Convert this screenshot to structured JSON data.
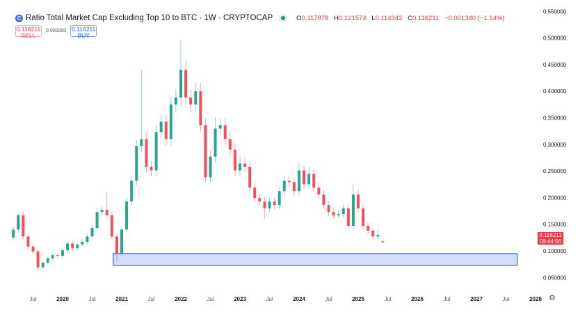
{
  "header": {
    "title": "Ratio Total Market Cap Excluding Top 10 to BTC · 1W · CRYPTOCAP",
    "logo_letter": "C",
    "market_status": "open",
    "ohlc": {
      "o_label": "O",
      "o": "0.117878",
      "h_label": "H",
      "h": "0.121574",
      "l_label": "L",
      "l": "0.114342",
      "c_label": "C",
      "c": "0.116211",
      "change": "−0.001340 (−1.14%)"
    },
    "sell": {
      "price": "0.116211",
      "label": "SELL"
    },
    "spread": "0.000000",
    "buy": {
      "price": "0.116211",
      "label": "BUY"
    }
  },
  "last_price": {
    "value": "0.116211",
    "countdown": "09:44:56"
  },
  "colors": {
    "up": "#089981",
    "down": "#f23645",
    "zone_fill": "#d3defc",
    "zone_border": "#2962ff"
  },
  "icons": {
    "settings": "gear-icon"
  },
  "chart_data": {
    "type": "candlestick",
    "interval_shown": "1W",
    "ylim": [
      0.03,
      0.56
    ],
    "y_ticks": [
      "0.550000",
      "0.500000",
      "0.450000",
      "0.400000",
      "0.350000",
      "0.300000",
      "0.250000",
      "0.200000",
      "0.150000",
      "0.100000",
      "0.050000"
    ],
    "y_tick_values": [
      0.55,
      0.5,
      0.45,
      0.4,
      0.35,
      0.3,
      0.25,
      0.2,
      0.15,
      0.1,
      0.05
    ],
    "x_ticks": [
      {
        "label": "Jul",
        "date": "2019-07",
        "major": false
      },
      {
        "label": "2020",
        "date": "2020-01",
        "major": true
      },
      {
        "label": "Jul",
        "date": "2020-07",
        "major": false
      },
      {
        "label": "2021",
        "date": "2021-01",
        "major": true
      },
      {
        "label": "Jul",
        "date": "2021-07",
        "major": false
      },
      {
        "label": "2022",
        "date": "2022-01",
        "major": true
      },
      {
        "label": "Jul",
        "date": "2022-07",
        "major": false
      },
      {
        "label": "2023",
        "date": "2023-01",
        "major": true
      },
      {
        "label": "Jul",
        "date": "2023-07",
        "major": false
      },
      {
        "label": "2024",
        "date": "2024-01",
        "major": true
      },
      {
        "label": "Jul",
        "date": "2024-07",
        "major": false
      },
      {
        "label": "2025",
        "date": "2025-01",
        "major": true
      },
      {
        "label": "Jul",
        "date": "2025-07",
        "major": false
      },
      {
        "label": "2026",
        "date": "2026-01",
        "major": true
      },
      {
        "label": "Jul",
        "date": "2026-07",
        "major": false
      },
      {
        "label": "2027",
        "date": "2027-01",
        "major": true
      },
      {
        "label": "Jul",
        "date": "2027-07",
        "major": false
      },
      {
        "label": "2028",
        "date": "2028-01",
        "major": true
      }
    ],
    "candles": [
      {
        "d": "2019-03",
        "c": 0.14,
        "o": 0.125
      },
      {
        "d": "2019-04",
        "c": 0.167,
        "h": 0.17
      },
      {
        "d": "2019-05",
        "c": 0.127
      },
      {
        "d": "2019-06",
        "c": 0.108
      },
      {
        "d": "2019-07",
        "c": 0.099
      },
      {
        "d": "2019-08",
        "c": 0.069,
        "l": 0.065
      },
      {
        "d": "2019-09",
        "c": 0.078
      },
      {
        "d": "2019-10",
        "c": 0.086
      },
      {
        "d": "2019-11",
        "c": 0.092
      },
      {
        "d": "2019-12",
        "c": 0.091
      },
      {
        "d": "2020-01",
        "c": 0.101
      },
      {
        "d": "2020-02",
        "c": 0.114
      },
      {
        "d": "2020-03",
        "c": 0.105
      },
      {
        "d": "2020-04",
        "c": 0.112
      },
      {
        "d": "2020-05",
        "c": 0.117
      },
      {
        "d": "2020-06",
        "c": 0.127
      },
      {
        "d": "2020-07",
        "c": 0.143
      },
      {
        "d": "2020-08",
        "c": 0.173
      },
      {
        "d": "2020-09",
        "c": 0.177
      },
      {
        "d": "2020-10",
        "c": 0.167,
        "h": 0.21
      },
      {
        "d": "2020-11",
        "c": 0.127
      },
      {
        "d": "2020-12",
        "c": 0.095,
        "l": 0.08
      },
      {
        "d": "2021-01",
        "c": 0.14
      },
      {
        "d": "2021-02",
        "c": 0.193
      },
      {
        "d": "2021-03",
        "c": 0.232
      },
      {
        "d": "2021-04",
        "c": 0.297
      },
      {
        "d": "2021-05",
        "c": 0.31,
        "h": 0.44
      },
      {
        "d": "2021-06",
        "c": 0.258
      },
      {
        "d": "2021-07",
        "c": 0.251
      },
      {
        "d": "2021-08",
        "c": 0.323
      },
      {
        "d": "2021-09",
        "c": 0.343
      },
      {
        "d": "2021-10",
        "c": 0.31
      },
      {
        "d": "2021-11",
        "c": 0.375
      },
      {
        "d": "2021-12",
        "c": 0.388
      },
      {
        "d": "2022-01",
        "c": 0.44,
        "h": 0.495
      },
      {
        "d": "2022-02",
        "c": 0.388
      },
      {
        "d": "2022-03",
        "c": 0.375
      },
      {
        "d": "2022-04",
        "c": 0.4
      },
      {
        "d": "2022-05",
        "c": 0.336
      },
      {
        "d": "2022-06",
        "c": 0.238,
        "l": 0.228
      },
      {
        "d": "2022-07",
        "c": 0.277
      },
      {
        "d": "2022-08",
        "c": 0.33,
        "h": 0.35
      },
      {
        "d": "2022-09",
        "c": 0.336
      },
      {
        "d": "2022-10",
        "c": 0.31
      },
      {
        "d": "2022-11",
        "c": 0.29
      },
      {
        "d": "2022-12",
        "c": 0.251
      },
      {
        "d": "2023-01",
        "c": 0.264,
        "h": 0.278
      },
      {
        "d": "2023-02",
        "c": 0.258
      },
      {
        "d": "2023-03",
        "c": 0.219
      },
      {
        "d": "2023-04",
        "c": 0.199
      },
      {
        "d": "2023-05",
        "c": 0.193
      },
      {
        "d": "2023-06",
        "c": 0.18,
        "l": 0.16
      },
      {
        "d": "2023-07",
        "c": 0.193
      },
      {
        "d": "2023-08",
        "c": 0.186
      },
      {
        "d": "2023-09",
        "c": 0.212
      },
      {
        "d": "2023-10",
        "c": 0.232
      },
      {
        "d": "2023-11",
        "c": 0.229
      },
      {
        "d": "2023-12",
        "c": 0.212
      },
      {
        "d": "2024-01",
        "c": 0.251,
        "h": 0.265
      },
      {
        "d": "2024-02",
        "c": 0.225
      },
      {
        "d": "2024-03",
        "c": 0.245,
        "h": 0.258
      },
      {
        "d": "2024-04",
        "c": 0.219
      },
      {
        "d": "2024-05",
        "c": 0.206
      },
      {
        "d": "2024-06",
        "c": 0.186
      },
      {
        "d": "2024-07",
        "c": 0.173
      },
      {
        "d": "2024-08",
        "c": 0.167
      },
      {
        "d": "2024-09",
        "c": 0.169
      },
      {
        "d": "2024-10",
        "c": 0.18
      },
      {
        "d": "2024-11",
        "c": 0.147,
        "l": 0.14
      },
      {
        "d": "2024-12",
        "c": 0.206,
        "h": 0.226
      },
      {
        "d": "2025-01",
        "c": 0.18
      },
      {
        "d": "2025-02",
        "c": 0.147
      },
      {
        "d": "2025-03",
        "c": 0.138
      },
      {
        "d": "2025-04",
        "c": 0.127
      },
      {
        "d": "2025-05",
        "c": 0.13,
        "h": 0.14
      },
      {
        "d": "2025-06",
        "c": 0.116211,
        "o": 0.117878,
        "h": 0.121574,
        "l": 0.114342
      }
    ],
    "zone": {
      "from": "2020-11",
      "to": "2027-09",
      "low": 0.073,
      "high": 0.095
    }
  }
}
